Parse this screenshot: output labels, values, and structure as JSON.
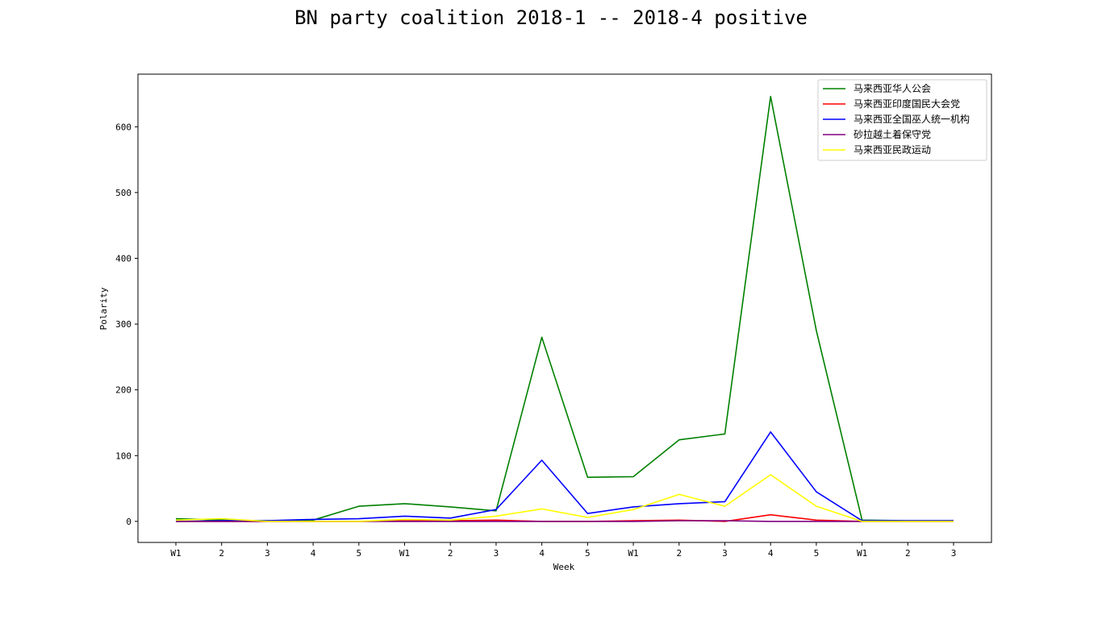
{
  "chart_data": {
    "type": "line",
    "title": "BN party coalition 2018-1 -- 2018-4 positive",
    "xlabel": "Week",
    "ylabel": "Polarity",
    "categories": [
      "W1",
      "2",
      "3",
      "4",
      "5",
      "W1",
      "2",
      "3",
      "4",
      "5",
      "W1",
      "2",
      "3",
      "4",
      "5",
      "W1",
      "2",
      "3"
    ],
    "ylim": [
      -32,
      680
    ],
    "yticks": [
      0,
      100,
      200,
      300,
      400,
      500,
      600
    ],
    "grid": false,
    "legend_position": "top-right",
    "series": [
      {
        "name": "马来西亚华人公会",
        "color": "#008000",
        "values": [
          4,
          2,
          1,
          2,
          23,
          27,
          22,
          16,
          280,
          67,
          68,
          124,
          133,
          646,
          290,
          2,
          1,
          1
        ]
      },
      {
        "name": "马来西亚印度国民大会党",
        "color": "#ff0000",
        "values": [
          0,
          0,
          0,
          0,
          0,
          1,
          1,
          2,
          0,
          0,
          1,
          2,
          0,
          10,
          2,
          0,
          0,
          0
        ]
      },
      {
        "name": "马来西亚全国巫人统一机构",
        "color": "#0000ff",
        "values": [
          0,
          1,
          1,
          3,
          4,
          8,
          5,
          18,
          93,
          12,
          22,
          27,
          30,
          136,
          45,
          1,
          1,
          1
        ]
      },
      {
        "name": "砂拉越土着保守党",
        "color": "#800080",
        "values": [
          0,
          0,
          0,
          0,
          0,
          0,
          0,
          0,
          0,
          0,
          0,
          1,
          1,
          0,
          0,
          0,
          0,
          0
        ]
      },
      {
        "name": "马来西亚民政运动",
        "color": "#ffff00",
        "values": [
          2,
          4,
          0,
          0,
          0,
          3,
          2,
          8,
          19,
          6,
          18,
          41,
          23,
          71,
          23,
          0,
          0,
          0
        ]
      }
    ]
  }
}
